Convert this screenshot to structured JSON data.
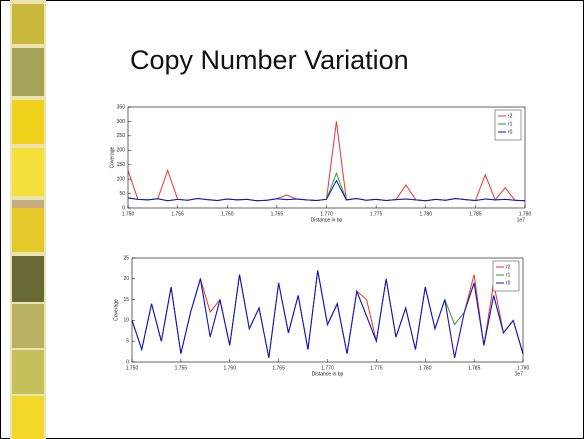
{
  "slide": {
    "title": "Copy Number Variation"
  },
  "chart_data": [
    {
      "type": "line",
      "xlabel": "Distance in bp",
      "ylabel": "Coverage",
      "x_offset_label": "1e7",
      "x": [
        1.75,
        1.751,
        1.752,
        1.753,
        1.754,
        1.755,
        1.756,
        1.757,
        1.758,
        1.759,
        1.76,
        1.761,
        1.762,
        1.763,
        1.764,
        1.765,
        1.766,
        1.767,
        1.768,
        1.769,
        1.77,
        1.771,
        1.772,
        1.773,
        1.774,
        1.775,
        1.776,
        1.777,
        1.778,
        1.779,
        1.78,
        1.781,
        1.782,
        1.783,
        1.784,
        1.785,
        1.786,
        1.787,
        1.788,
        1.789,
        1.79
      ],
      "series": [
        {
          "name": "r2",
          "color": "#e8352b",
          "values": [
            130,
            30,
            28,
            32,
            130,
            30,
            27,
            33,
            29,
            26,
            31,
            28,
            30,
            25,
            27,
            32,
            45,
            31,
            28,
            26,
            30,
            300,
            28,
            33,
            27,
            30,
            26,
            29,
            80,
            28,
            25,
            30,
            27,
            33,
            29,
            26,
            115,
            28,
            70,
            27,
            25
          ]
        },
        {
          "name": "r1",
          "color": "#2a9a2a",
          "values": [
            35,
            30,
            28,
            32,
            25,
            30,
            27,
            33,
            29,
            26,
            31,
            28,
            30,
            25,
            27,
            32,
            29,
            31,
            28,
            26,
            30,
            120,
            28,
            33,
            27,
            30,
            26,
            29,
            31,
            28,
            25,
            30,
            27,
            33,
            29,
            26,
            31,
            28,
            30,
            27,
            25
          ]
        },
        {
          "name": "r0",
          "color": "#1010d8",
          "values": [
            35,
            30,
            28,
            32,
            25,
            30,
            27,
            33,
            29,
            26,
            31,
            28,
            30,
            25,
            27,
            32,
            29,
            31,
            28,
            26,
            30,
            95,
            28,
            33,
            27,
            30,
            26,
            29,
            31,
            28,
            25,
            30,
            27,
            33,
            29,
            26,
            31,
            28,
            30,
            27,
            25
          ]
        }
      ],
      "xlim": [
        1.75,
        1.79
      ],
      "xticks": [
        {
          "value": 1.75,
          "label": "1.750"
        },
        {
          "value": 1.755,
          "label": "1.755"
        },
        {
          "value": 1.76,
          "label": "1.760"
        },
        {
          "value": 1.765,
          "label": "1.765"
        },
        {
          "value": 1.77,
          "label": "1.770"
        },
        {
          "value": 1.775,
          "label": "1.775"
        },
        {
          "value": 1.78,
          "label": "1.780"
        },
        {
          "value": 1.785,
          "label": "1.785"
        },
        {
          "value": 1.79,
          "label": "1.790"
        }
      ],
      "ylim": [
        0,
        350
      ],
      "yticks": [
        0,
        50,
        100,
        150,
        200,
        250,
        300,
        350
      ],
      "legend": "upper right"
    },
    {
      "type": "line",
      "xlabel": "Distance in bp",
      "ylabel": "Coverage",
      "x_offset_label": "1e7",
      "x": [
        1.75,
        1.751,
        1.752,
        1.753,
        1.754,
        1.755,
        1.756,
        1.757,
        1.758,
        1.759,
        1.76,
        1.761,
        1.762,
        1.763,
        1.764,
        1.765,
        1.766,
        1.767,
        1.768,
        1.769,
        1.77,
        1.771,
        1.772,
        1.773,
        1.774,
        1.775,
        1.776,
        1.777,
        1.778,
        1.779,
        1.78,
        1.781,
        1.782,
        1.783,
        1.784,
        1.785,
        1.786,
        1.787,
        1.788,
        1.789,
        1.79
      ],
      "series": [
        {
          "name": "r2",
          "color": "#e8352b",
          "values": [
            10,
            3,
            14,
            5,
            18,
            2,
            12,
            20,
            12,
            15,
            4,
            21,
            8,
            13,
            1,
            19,
            7,
            16,
            3,
            22,
            9,
            14,
            2,
            17,
            15,
            5,
            20,
            6,
            13,
            3,
            18,
            8,
            15,
            1,
            12,
            21,
            4,
            19,
            7,
            10,
            2
          ]
        },
        {
          "name": "r1",
          "color": "#2a9a2a",
          "values": [
            10,
            3,
            14,
            5,
            18,
            2,
            12,
            20,
            6,
            15,
            4,
            21,
            8,
            13,
            1,
            19,
            7,
            16,
            3,
            22,
            9,
            14,
            2,
            17,
            11,
            5,
            20,
            6,
            13,
            3,
            18,
            8,
            15,
            9,
            12,
            19,
            4,
            16,
            7,
            10,
            2
          ]
        },
        {
          "name": "r0",
          "color": "#1010d8",
          "values": [
            10,
            3,
            14,
            5,
            18,
            2,
            12,
            20,
            6,
            15,
            4,
            21,
            8,
            13,
            1,
            19,
            7,
            16,
            3,
            22,
            9,
            14,
            2,
            17,
            11,
            5,
            20,
            6,
            13,
            3,
            18,
            8,
            15,
            1,
            12,
            19,
            4,
            16,
            7,
            10,
            2
          ]
        }
      ],
      "xlim": [
        1.75,
        1.79
      ],
      "xticks": [
        {
          "value": 1.75,
          "label": "1.750"
        },
        {
          "value": 1.755,
          "label": "1.755"
        },
        {
          "value": 1.76,
          "label": "1.760"
        },
        {
          "value": 1.765,
          "label": "1.765"
        },
        {
          "value": 1.77,
          "label": "1.770"
        },
        {
          "value": 1.775,
          "label": "1.775"
        },
        {
          "value": 1.78,
          "label": "1.780"
        },
        {
          "value": 1.785,
          "label": "1.785"
        },
        {
          "value": 1.79,
          "label": "1.790"
        }
      ],
      "ylim": [
        0,
        25
      ],
      "yticks": [
        0,
        5,
        10,
        15,
        20,
        25
      ],
      "legend": "upper right"
    }
  ]
}
